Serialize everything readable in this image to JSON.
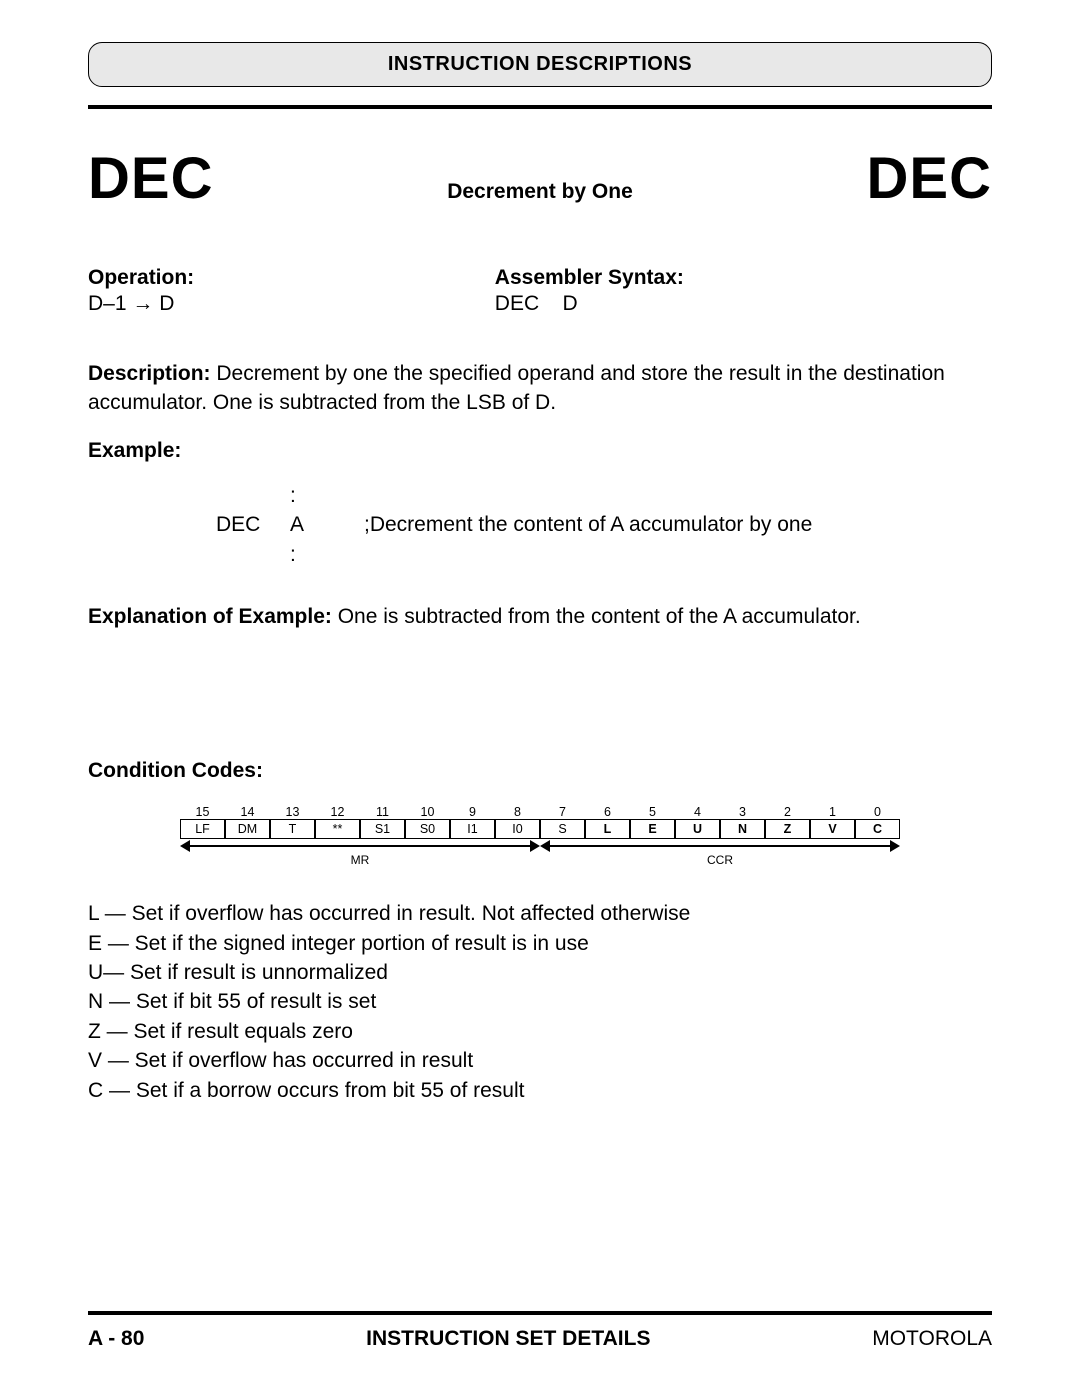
{
  "header": {
    "title": "INSTRUCTION DESCRIPTIONS"
  },
  "instruction": {
    "mnemonic_left": "DEC",
    "mnemonic_right": "DEC",
    "subtitle": "Decrement by One"
  },
  "operation": {
    "label": "Operation:",
    "text": "D–1 → D"
  },
  "assembler": {
    "label": "Assembler Syntax:",
    "text": "DEC    D"
  },
  "description": {
    "label": "Description: ",
    "text": "Decrement by one the specified operand and store the result in the destination accumulator. One is subtracted from the LSB of D."
  },
  "example": {
    "label": "Example:",
    "code_mnemonic": "DEC",
    "code_operand": "A",
    "code_comment": ";Decrement the content of A accumulator by one",
    "colon": ":"
  },
  "explanation": {
    "label": "Explanation of Example: ",
    "text": "One is subtracted from the content of the A accumulator."
  },
  "condition_codes": {
    "label": "Condition Codes:",
    "bit_numbers": [
      "15",
      "14",
      "13",
      "12",
      "11",
      "10",
      "9",
      "8",
      "7",
      "6",
      "5",
      "4",
      "3",
      "2",
      "1",
      "0"
    ],
    "bit_labels": [
      "LF",
      "DM",
      "T",
      "**",
      "S1",
      "S0",
      "I1",
      "I0",
      "S",
      "L",
      "E",
      "U",
      "N",
      "Z",
      "V",
      "C"
    ],
    "bold_from_index": 9,
    "mr_label": "MR",
    "ccr_label": "CCR",
    "list": [
      "L — Set if overflow has occurred in result. Not affected otherwise",
      "E — Set if the signed integer portion of result is in use",
      "U— Set if result is unnormalized",
      "N — Set if bit 55 of result is set",
      "Z — Set if result equals zero",
      "V — Set if overflow has occurred in result",
      "C — Set if a borrow occurs from bit 55 of result"
    ]
  },
  "footer": {
    "page": "A - 80",
    "center": "INSTRUCTION SET DETAILS",
    "right": "MOTOROLA"
  },
  "colors": {
    "header_bg": "#e8e8e8",
    "text": "#000000",
    "rule": "#000000"
  }
}
